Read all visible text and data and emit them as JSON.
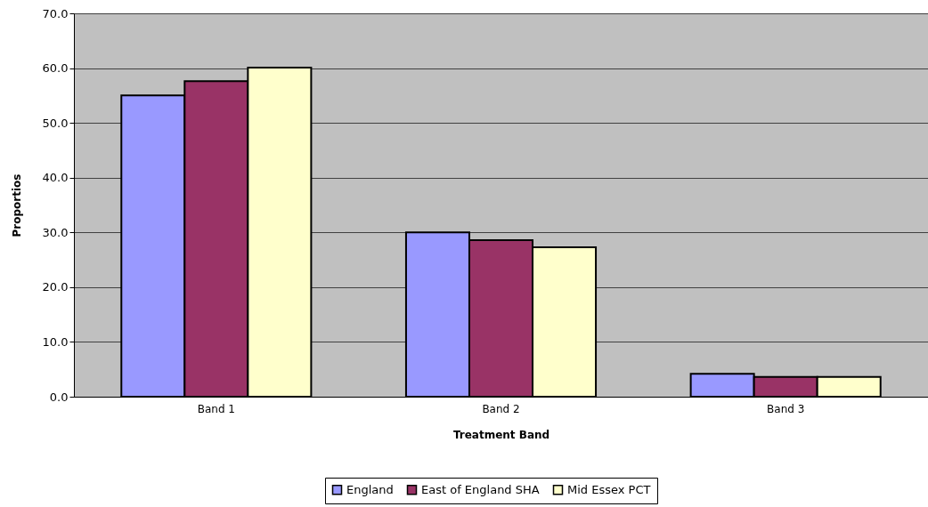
{
  "chart_data": {
    "type": "bar",
    "categories": [
      "Band 1",
      "Band 2",
      "Band 3"
    ],
    "xlabel": "Treatment Band",
    "ylabel": "Proportios",
    "series": [
      {
        "name": "England",
        "color": "#9999ff",
        "values": [
          55.0,
          30.0,
          4.2
        ]
      },
      {
        "name": "East of England SHA",
        "color": "#993366",
        "values": [
          57.6,
          28.6,
          3.6
        ]
      },
      {
        "name": "Mid Essex PCT",
        "color": "#ffffcc",
        "values": [
          60.1,
          27.3,
          3.6
        ]
      }
    ],
    "ylim": [
      0,
      70
    ],
    "yticks": [
      {
        "value": 0,
        "label": "0.0"
      },
      {
        "value": 10,
        "label": "10.0"
      },
      {
        "value": 20,
        "label": "20.0"
      },
      {
        "value": 30,
        "label": "30.0"
      },
      {
        "value": 40,
        "label": "40.0"
      },
      {
        "value": 50,
        "label": "50.0"
      },
      {
        "value": 60,
        "label": "60.0"
      },
      {
        "value": 70,
        "label": "70.0"
      }
    ],
    "grid": "y",
    "legend": "bottom"
  }
}
